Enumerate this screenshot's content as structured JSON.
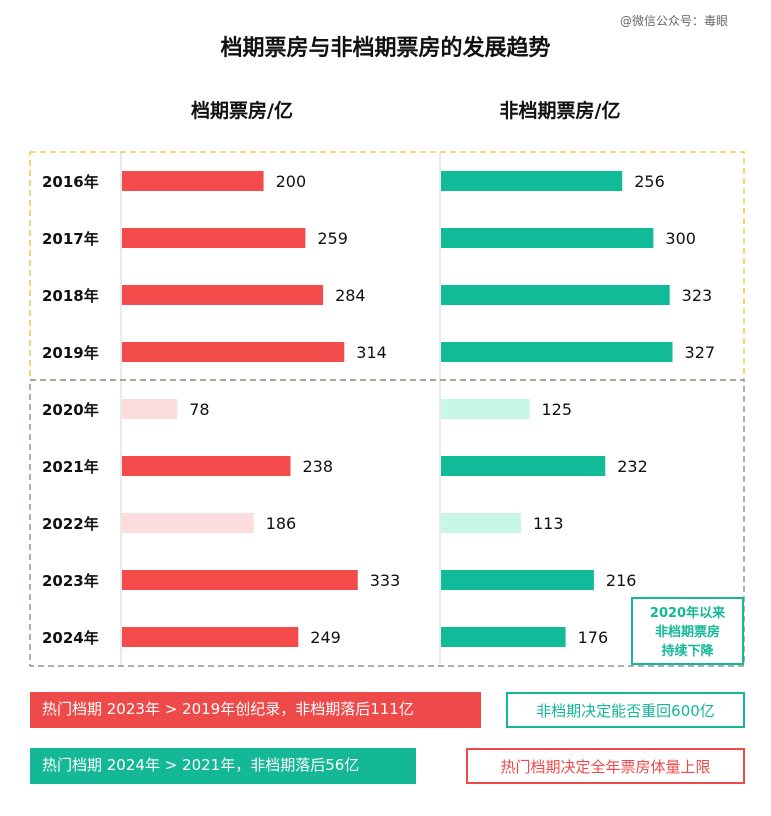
{
  "watermark": "@微信公众号：毒眼",
  "chart_data": {
    "type": "bar",
    "title": "档期票房与非档期票房的发展趋势",
    "categories": [
      "2016年",
      "2017年",
      "2018年",
      "2019年",
      "2020年",
      "2021年",
      "2022年",
      "2023年",
      "2024年"
    ],
    "series": [
      {
        "name": "档期票房/亿",
        "values": [
          200,
          259,
          284,
          314,
          78,
          238,
          186,
          333,
          249
        ],
        "color": "#f44b4b",
        "faded_color": "#fcdcdc"
      },
      {
        "name": "非档期票房/亿",
        "values": [
          256,
          300,
          323,
          327,
          125,
          232,
          113,
          216,
          176
        ],
        "color": "#12bb98",
        "faded_color": "#c8f7ea"
      }
    ],
    "faded_categories": [
      "2020年",
      "2022年"
    ],
    "xlim": [
      0,
      400
    ],
    "annotation": [
      "2020年以来",
      "非档期票房",
      "持续下降"
    ]
  },
  "pills": [
    {
      "text": "热门档期 2023年 > 2019年创纪录，非档期落后111亿"
    },
    {
      "text": "非档期决定能否重回600亿"
    },
    {
      "text": "热门档期 2024年 > 2021年，非档期落后56亿"
    },
    {
      "text": "热门档期决定全年票房体量上限"
    }
  ],
  "colors": {
    "red": "#ef4a4a",
    "green": "#14b896",
    "yellow_dash": "#f2c84b",
    "grey_dash": "#8c959b"
  }
}
